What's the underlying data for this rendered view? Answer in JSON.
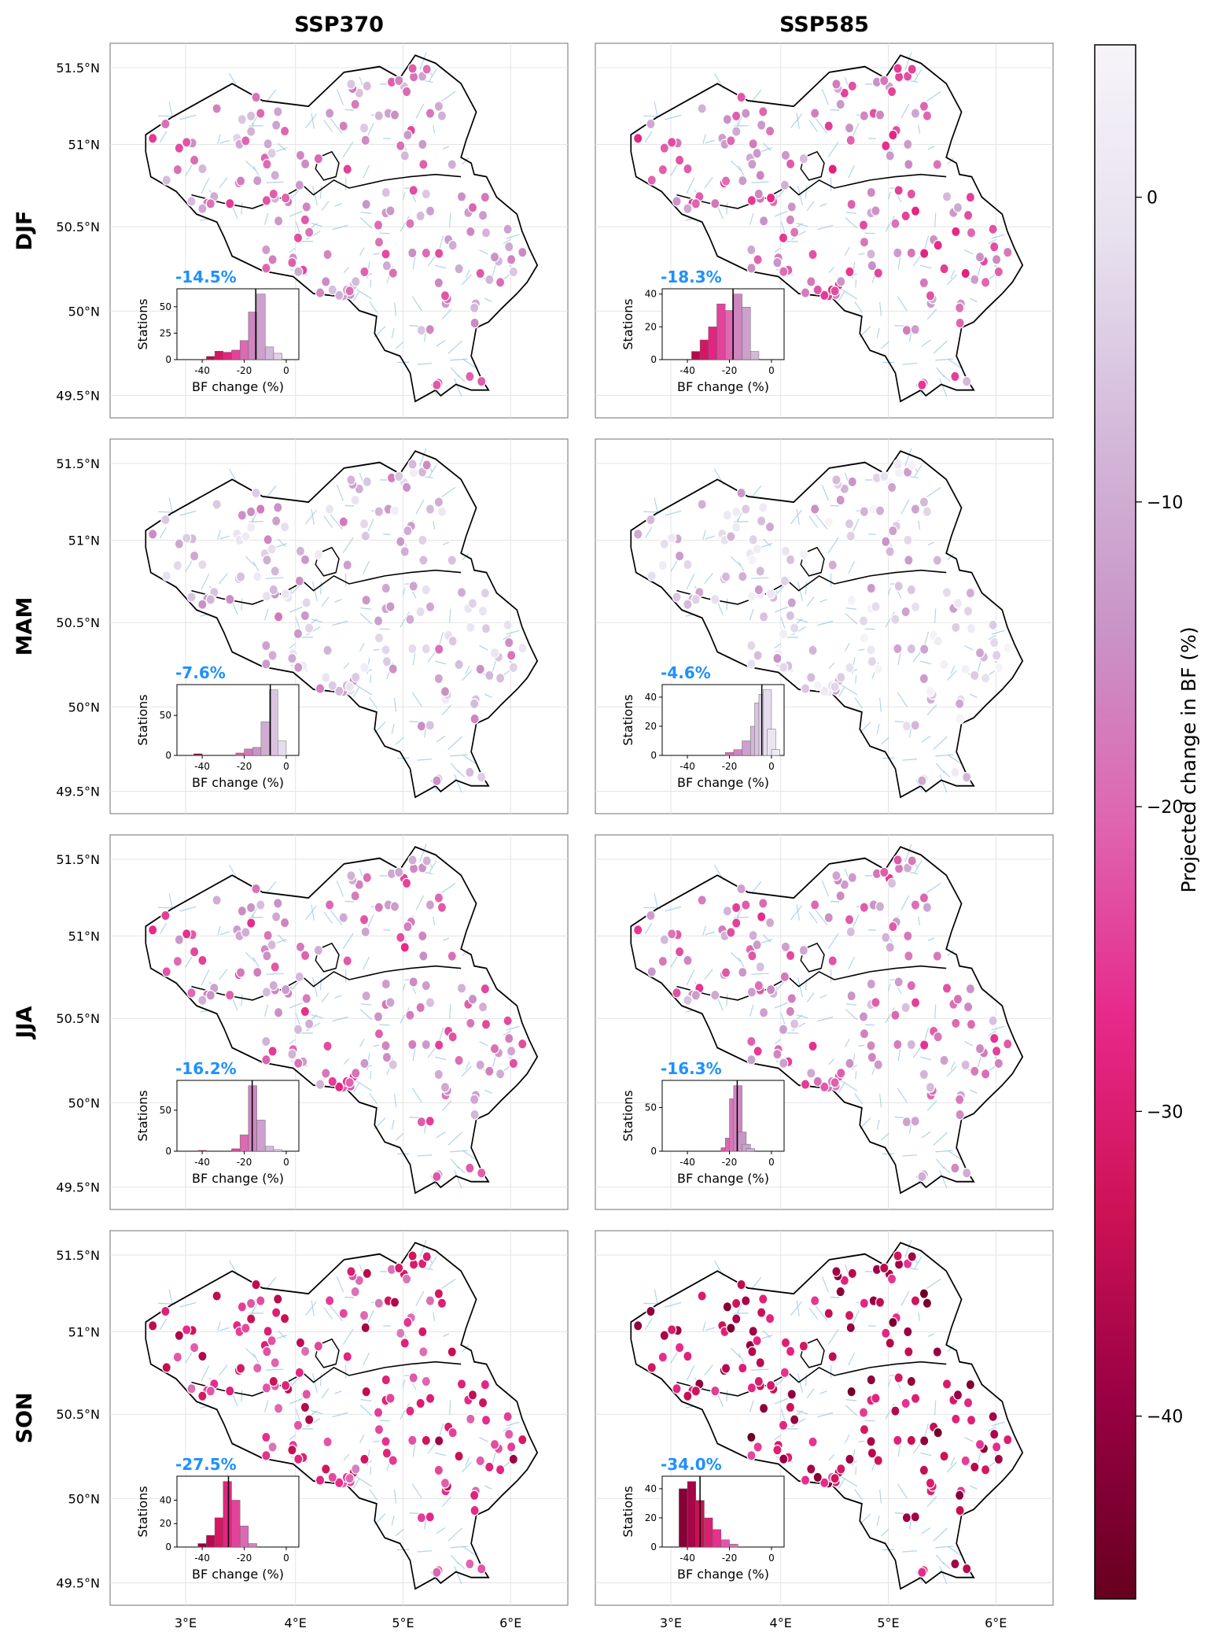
{
  "figure": {
    "columns": [
      "SSP370",
      "SSP585"
    ],
    "rows": [
      "DJF",
      "MAM",
      "JJA",
      "SON"
    ],
    "lat_ticks": [
      "51.5°N",
      "51°N",
      "50.5°N",
      "50°N",
      "49.5°N"
    ],
    "lon_ticks": [
      "3°E",
      "4°E",
      "5°E",
      "6°E"
    ],
    "inset_xlabel": "BF change (%)",
    "inset_ylabel": "Stations",
    "inset_xticks": [
      "-40",
      "-20",
      "0"
    ],
    "colorbar": {
      "label": "Projected change in BF (%)",
      "ticks": [
        "0",
        "−10",
        "−20",
        "−30",
        "−40"
      ],
      "range": [
        -46,
        5
      ],
      "colors": [
        "#67001f",
        "#980043",
        "#ce1256",
        "#e7298a",
        "#df65b0",
        "#c994c7",
        "#d4b9da",
        "#e7e1ef",
        "#f7f4f9"
      ]
    },
    "river_color": "#9ecae1",
    "border_color": "#000000",
    "value_color": "#1e90ff"
  },
  "chart_data": [
    {
      "type": "map+histogram",
      "scenario": "SSP370",
      "season": "DJF",
      "median_label": "-14.5%",
      "median": -14.5,
      "yticks": [
        "0",
        "25",
        "50"
      ],
      "ymax": 62,
      "hist": [
        {
          "x": -36,
          "n": 3
        },
        {
          "x": -32,
          "n": 8
        },
        {
          "x": -28,
          "n": 7
        },
        {
          "x": -24,
          "n": 9
        },
        {
          "x": -20,
          "n": 18
        },
        {
          "x": -16,
          "n": 45
        },
        {
          "x": -12,
          "n": 62
        },
        {
          "x": -8,
          "n": 12
        },
        {
          "x": -4,
          "n": 6
        }
      ]
    },
    {
      "type": "map+histogram",
      "scenario": "SSP585",
      "season": "DJF",
      "median_label": "-18.3%",
      "median": -18.3,
      "yticks": [
        "0",
        "20",
        "40"
      ],
      "ymax": 40,
      "hist": [
        {
          "x": -36,
          "n": 5
        },
        {
          "x": -32,
          "n": 12
        },
        {
          "x": -28,
          "n": 20
        },
        {
          "x": -24,
          "n": 34
        },
        {
          "x": -20,
          "n": 30
        },
        {
          "x": -16,
          "n": 40
        },
        {
          "x": -12,
          "n": 32
        },
        {
          "x": -8,
          "n": 5
        }
      ]
    },
    {
      "type": "map+histogram",
      "scenario": "SSP370",
      "season": "MAM",
      "median_label": "-7.6%",
      "median": -7.6,
      "yticks": [
        "0",
        "50"
      ],
      "ymax": 82,
      "hist": [
        {
          "x": -42,
          "n": 2
        },
        {
          "x": -22,
          "n": 3
        },
        {
          "x": -18,
          "n": 8
        },
        {
          "x": -14,
          "n": 10
        },
        {
          "x": -10,
          "n": 42
        },
        {
          "x": -6,
          "n": 82
        },
        {
          "x": -2,
          "n": 18
        }
      ]
    },
    {
      "type": "map+histogram",
      "scenario": "SSP585",
      "season": "MAM",
      "median_label": "-4.6%",
      "median": -4.6,
      "yticks": [
        "0",
        "20",
        "40"
      ],
      "ymax": 45,
      "hist": [
        {
          "x": -20,
          "n": 2
        },
        {
          "x": -16,
          "n": 4
        },
        {
          "x": -12,
          "n": 10
        },
        {
          "x": -8,
          "n": 20
        },
        {
          "x": -6,
          "n": 36
        },
        {
          "x": -4,
          "n": 42
        },
        {
          "x": -2,
          "n": 45
        },
        {
          "x": 0,
          "n": 18
        },
        {
          "x": 2,
          "n": 4
        }
      ]
    },
    {
      "type": "map+histogram",
      "scenario": "SSP370",
      "season": "JJA",
      "median_label": "-16.2%",
      "median": -16.2,
      "yticks": [
        "0",
        "50"
      ],
      "ymax": 80,
      "hist": [
        {
          "x": -40,
          "n": 1
        },
        {
          "x": -24,
          "n": 3
        },
        {
          "x": -20,
          "n": 20
        },
        {
          "x": -16,
          "n": 80
        },
        {
          "x": -12,
          "n": 38
        },
        {
          "x": -8,
          "n": 6
        },
        {
          "x": -4,
          "n": 2
        }
      ]
    },
    {
      "type": "map+histogram",
      "scenario": "SSP585",
      "season": "JJA",
      "median_label": "-16.3%",
      "median": -16.3,
      "yticks": [
        "0",
        "50"
      ],
      "ymax": 75,
      "hist": [
        {
          "x": -22,
          "n": 4
        },
        {
          "x": -20,
          "n": 15
        },
        {
          "x": -18,
          "n": 60
        },
        {
          "x": -16,
          "n": 75
        },
        {
          "x": -14,
          "n": 22
        },
        {
          "x": -12,
          "n": 8
        },
        {
          "x": -10,
          "n": 3
        }
      ]
    },
    {
      "type": "map+histogram",
      "scenario": "SSP370",
      "season": "SON",
      "median_label": "-27.5%",
      "median": -27.5,
      "yticks": [
        "0",
        "20",
        "40"
      ],
      "ymax": 56,
      "hist": [
        {
          "x": -40,
          "n": 3
        },
        {
          "x": -36,
          "n": 10
        },
        {
          "x": -32,
          "n": 25
        },
        {
          "x": -28,
          "n": 56
        },
        {
          "x": -24,
          "n": 40
        },
        {
          "x": -20,
          "n": 18
        },
        {
          "x": -16,
          "n": 3
        }
      ]
    },
    {
      "type": "map+histogram",
      "scenario": "SSP585",
      "season": "SON",
      "median_label": "-34.0%",
      "median": -34.0,
      "yticks": [
        "0",
        "20",
        "40"
      ],
      "ymax": 45,
      "hist": [
        {
          "x": -42,
          "n": 40
        },
        {
          "x": -38,
          "n": 45
        },
        {
          "x": -34,
          "n": 32
        },
        {
          "x": -30,
          "n": 20
        },
        {
          "x": -26,
          "n": 12
        },
        {
          "x": -22,
          "n": 5
        },
        {
          "x": -18,
          "n": 2
        }
      ]
    }
  ]
}
